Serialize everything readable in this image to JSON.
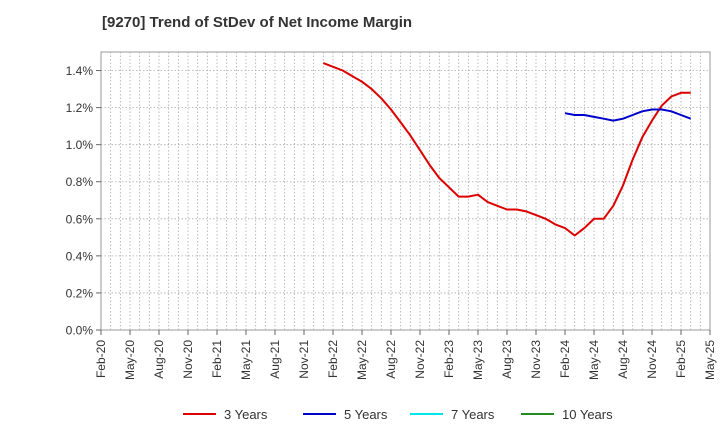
{
  "chart_data": {
    "type": "line",
    "title": "[9270]  Trend of StDev of Net Income Margin",
    "xlabel": "",
    "ylabel": "",
    "ylim": [
      0,
      1.5
    ],
    "yticks": [
      "0.0%",
      "0.2%",
      "0.4%",
      "0.6%",
      "0.8%",
      "1.0%",
      "1.2%",
      "1.4%"
    ],
    "xticks": [
      "Feb-20",
      "May-20",
      "Aug-20",
      "Nov-20",
      "Feb-21",
      "May-21",
      "Aug-21",
      "Nov-21",
      "Feb-22",
      "May-22",
      "Aug-22",
      "Nov-22",
      "Feb-23",
      "May-23",
      "Aug-23",
      "Nov-23",
      "Feb-24",
      "May-24",
      "Aug-24",
      "Nov-24",
      "Feb-25",
      "May-25"
    ],
    "grid": true,
    "legend_position": "bottom",
    "series": [
      {
        "name": "3 Years",
        "color": "#dd0000",
        "points": [
          [
            "Jan-22",
            1.44
          ],
          [
            "Feb-22",
            1.42
          ],
          [
            "Mar-22",
            1.4
          ],
          [
            "Apr-22",
            1.37
          ],
          [
            "May-22",
            1.34
          ],
          [
            "Jun-22",
            1.3
          ],
          [
            "Jul-22",
            1.25
          ],
          [
            "Aug-22",
            1.19
          ],
          [
            "Sep-22",
            1.12
          ],
          [
            "Oct-22",
            1.05
          ],
          [
            "Nov-22",
            0.97
          ],
          [
            "Dec-22",
            0.89
          ],
          [
            "Jan-23",
            0.82
          ],
          [
            "Feb-23",
            0.77
          ],
          [
            "Mar-23",
            0.72
          ],
          [
            "Apr-23",
            0.72
          ],
          [
            "May-23",
            0.73
          ],
          [
            "Jun-23",
            0.69
          ],
          [
            "Jul-23",
            0.67
          ],
          [
            "Aug-23",
            0.65
          ],
          [
            "Sep-23",
            0.65
          ],
          [
            "Oct-23",
            0.64
          ],
          [
            "Nov-23",
            0.62
          ],
          [
            "Dec-23",
            0.6
          ],
          [
            "Jan-24",
            0.57
          ],
          [
            "Feb-24",
            0.55
          ],
          [
            "Mar-24",
            0.51
          ],
          [
            "Apr-24",
            0.55
          ],
          [
            "May-24",
            0.6
          ],
          [
            "Jun-24",
            0.6
          ],
          [
            "Jul-24",
            0.67
          ],
          [
            "Aug-24",
            0.78
          ],
          [
            "Sep-24",
            0.92
          ],
          [
            "Oct-24",
            1.04
          ],
          [
            "Nov-24",
            1.13
          ],
          [
            "Dec-24",
            1.21
          ],
          [
            "Jan-25",
            1.26
          ],
          [
            "Feb-25",
            1.28
          ],
          [
            "Mar-25",
            1.28
          ]
        ]
      },
      {
        "name": "5 Years",
        "color": "#0000cc",
        "points": [
          [
            "Feb-24",
            1.17
          ],
          [
            "Mar-24",
            1.16
          ],
          [
            "Apr-24",
            1.16
          ],
          [
            "May-24",
            1.15
          ],
          [
            "Jun-24",
            1.14
          ],
          [
            "Jul-24",
            1.13
          ],
          [
            "Aug-24",
            1.14
          ],
          [
            "Sep-24",
            1.16
          ],
          [
            "Oct-24",
            1.18
          ],
          [
            "Nov-24",
            1.19
          ],
          [
            "Dec-24",
            1.19
          ],
          [
            "Jan-25",
            1.18
          ],
          [
            "Feb-25",
            1.16
          ],
          [
            "Mar-25",
            1.14
          ]
        ]
      },
      {
        "name": "7 Years",
        "color": "#00e5ee",
        "points": []
      },
      {
        "name": "10 Years",
        "color": "#228b22",
        "points": []
      }
    ]
  }
}
